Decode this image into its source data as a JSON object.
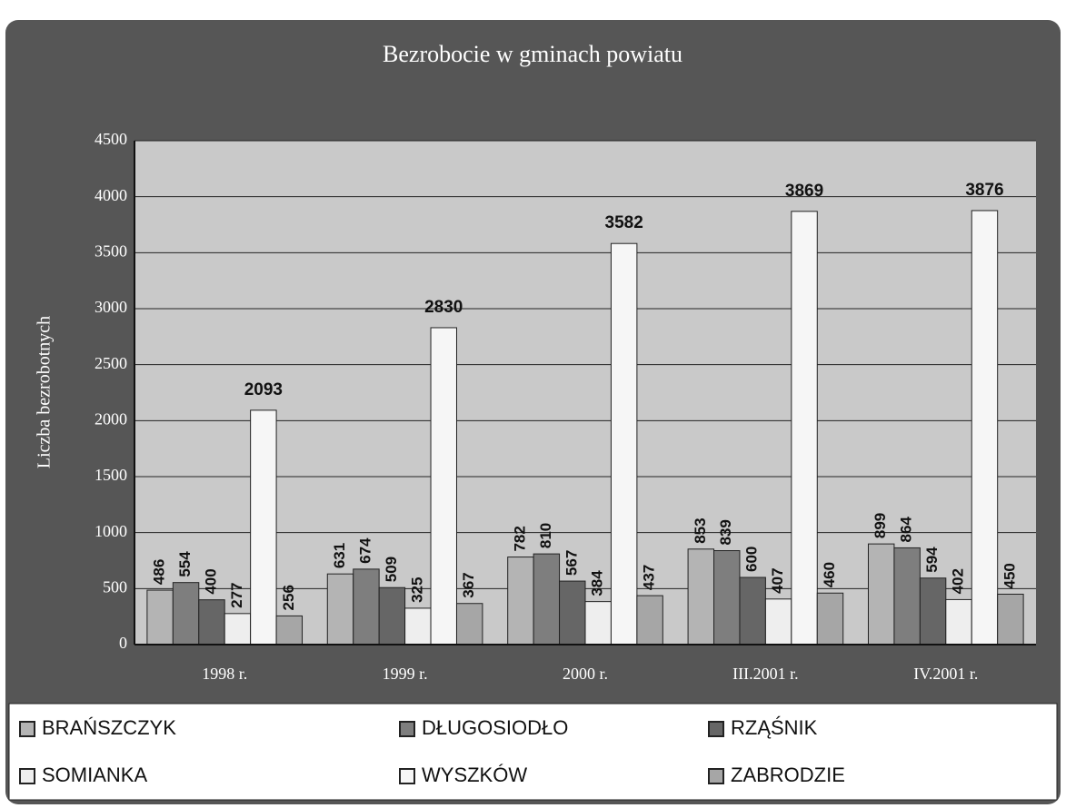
{
  "chart_data": {
    "type": "bar",
    "title": "Bezrobocie w gminach powiatu",
    "y_label": "Liczba bezrobotnych",
    "categories": [
      "1998 r.",
      "1999 r.",
      "2000 r.",
      "III.2001 r.",
      "IV.2001 r."
    ],
    "series": [
      {
        "name": "BRAŃSZCZYK",
        "color": "#b4b4b4",
        "values": [
          486,
          631,
          782,
          853,
          899
        ]
      },
      {
        "name": "DŁUGOSIODŁO",
        "color": "#7e7e7e",
        "values": [
          554,
          674,
          810,
          839,
          864
        ]
      },
      {
        "name": "RZĄŚNIK",
        "color": "#666666",
        "values": [
          400,
          509,
          567,
          600,
          594
        ]
      },
      {
        "name": "SOMIANKA",
        "color": "#eeeeee",
        "values": [
          277,
          325,
          384,
          407,
          402
        ]
      },
      {
        "name": "WYSZKÓW",
        "color": "#f6f6f6",
        "values": [
          2093,
          2830,
          3582,
          3869,
          3876
        ]
      },
      {
        "name": "ZABRODZIE",
        "color": "#a6a6a6",
        "values": [
          256,
          367,
          437,
          460,
          450
        ]
      }
    ],
    "ylim": [
      0,
      4500
    ],
    "yticks": [
      0,
      500,
      1000,
      1500,
      2000,
      2500,
      3000,
      3500,
      4000,
      4500
    ],
    "grid": true,
    "legend": "bottom"
  }
}
